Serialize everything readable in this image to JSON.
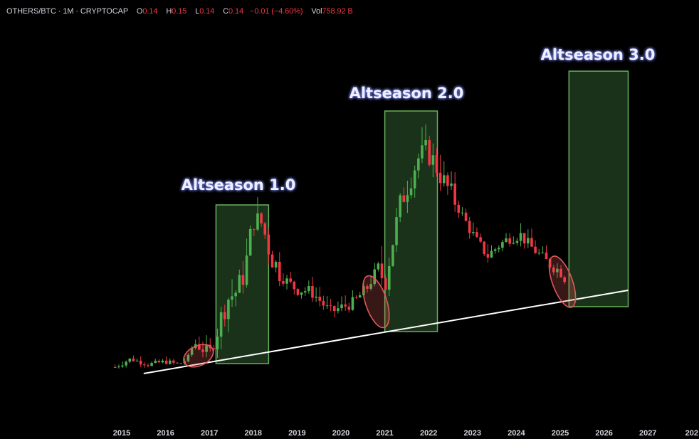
{
  "legend": {
    "symbol": "OTHERS/BTC · 1M · CRYPTOCAP",
    "o_key": "O",
    "o_val": "0.14",
    "h_key": "H",
    "h_val": "0.15",
    "l_key": "L",
    "l_val": "0.14",
    "c_key": "C",
    "c_val": "0.14",
    "change": "−0.01 (−4.60%)",
    "vol_key": "Vol",
    "vol_val": "758.92 B"
  },
  "colors": {
    "up": "#4caf50",
    "down": "#f23645",
    "zone_fill": "#1f3b1d",
    "zone_stroke": "#67b35c",
    "trendline": "#ffffff",
    "circle": "#e05a5a"
  },
  "chart_data": {
    "type": "candlestick",
    "title": "",
    "xlabel": "",
    "ylabel": "",
    "x_ticks": [
      "2015",
      "2016",
      "2017",
      "2018",
      "2019",
      "2020",
      "2021",
      "2022",
      "2023",
      "2024",
      "2025",
      "2026",
      "2027",
      "202"
    ],
    "y_scale": "log",
    "grid": false,
    "annotations": [
      {
        "type": "zone",
        "label": "Altseason 1.0",
        "x_start": 2017.15,
        "x_end": 2018.35
      },
      {
        "type": "zone",
        "label": "Altseason 2.0",
        "x_start": 2021.0,
        "x_end": 2022.2
      },
      {
        "type": "zone",
        "label": "Altseason 3.0",
        "x_start": 2025.2,
        "x_end": 2026.55
      },
      {
        "type": "ellipse",
        "x": 2016.75
      },
      {
        "type": "ellipse",
        "x": 2020.8
      },
      {
        "type": "ellipse",
        "x": 2025.05
      },
      {
        "type": "trendline",
        "x_start": 2015.5,
        "x_end": 2026.55
      }
    ],
    "anchors": [
      [
        2014.85,
        0.015
      ],
      [
        2015.2,
        0.0165
      ],
      [
        2015.6,
        0.0155
      ],
      [
        2016.0,
        0.016
      ],
      [
        2016.3,
        0.0155
      ],
      [
        2016.5,
        0.0165
      ],
      [
        2016.65,
        0.02
      ],
      [
        2016.85,
        0.0185
      ],
      [
        2017.05,
        0.018
      ],
      [
        2017.2,
        0.024
      ],
      [
        2017.4,
        0.033
      ],
      [
        2017.6,
        0.036
      ],
      [
        2017.8,
        0.045
      ],
      [
        2018.0,
        0.085
      ],
      [
        2018.2,
        0.08
      ],
      [
        2018.4,
        0.055
      ],
      [
        2018.7,
        0.042
      ],
      [
        2019.0,
        0.037
      ],
      [
        2019.3,
        0.0365
      ],
      [
        2019.5,
        0.033
      ],
      [
        2019.75,
        0.0285
      ],
      [
        2020.0,
        0.03
      ],
      [
        2020.3,
        0.032
      ],
      [
        2020.6,
        0.038
      ],
      [
        2020.85,
        0.048
      ],
      [
        2021.0,
        0.04
      ],
      [
        2021.15,
        0.06
      ],
      [
        2021.35,
        0.1
      ],
      [
        2021.55,
        0.13
      ],
      [
        2021.75,
        0.17
      ],
      [
        2021.95,
        0.19
      ],
      [
        2022.15,
        0.16
      ],
      [
        2022.35,
        0.13
      ],
      [
        2022.55,
        0.11
      ],
      [
        2022.8,
        0.085
      ],
      [
        2023.1,
        0.065
      ],
      [
        2023.35,
        0.055
      ],
      [
        2023.6,
        0.062
      ],
      [
        2023.85,
        0.068
      ],
      [
        2024.1,
        0.07
      ],
      [
        2024.3,
        0.062
      ],
      [
        2024.55,
        0.055
      ],
      [
        2024.75,
        0.05
      ],
      [
        2025.0,
        0.046
      ],
      [
        2025.15,
        0.041
      ]
    ]
  },
  "zone_labels": [
    "Altseason 1.0",
    "Altseason 2.0",
    "Altseason 3.0"
  ]
}
